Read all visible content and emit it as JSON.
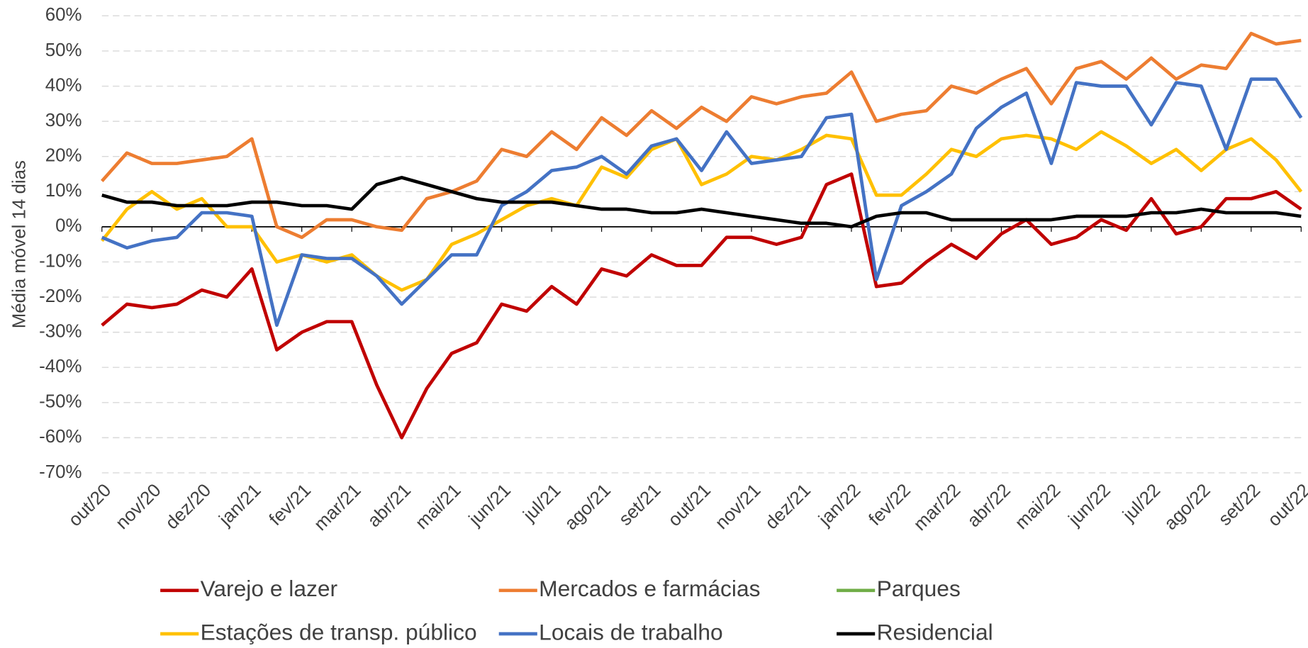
{
  "chart_data": {
    "type": "line",
    "y_label": "Média móvel 14 dias",
    "categories": [
      "out/20",
      null,
      "nov/20",
      null,
      "dez/20",
      null,
      "jan/21",
      null,
      "fev/21",
      null,
      "mar/21",
      null,
      "abr/21",
      null,
      "mai/21",
      null,
      "jun/21",
      null,
      "jul/21",
      null,
      "ago/21",
      null,
      "set/21",
      null,
      "out/21",
      null,
      "nov/21",
      null,
      "dez/21",
      null,
      "jan/22",
      null,
      "fev/22",
      null,
      "mar/22",
      null,
      "abr/22",
      null,
      "mai/22",
      null,
      "jun/22",
      null,
      "jul/22",
      null,
      "ago/22",
      null,
      "set/22",
      null,
      "out/22"
    ],
    "ylim": [
      -70,
      60
    ],
    "yticks": [
      {
        "value": -70,
        "label": "-70%"
      },
      {
        "value": -60,
        "label": "-60%"
      },
      {
        "value": -50,
        "label": "-50%"
      },
      {
        "value": -40,
        "label": "-40%"
      },
      {
        "value": -30,
        "label": "-30%"
      },
      {
        "value": -20,
        "label": "-20%"
      },
      {
        "value": -10,
        "label": "-10%"
      },
      {
        "value": 0,
        "label": "0%"
      },
      {
        "value": 10,
        "label": "10%"
      },
      {
        "value": 20,
        "label": "20%"
      },
      {
        "value": 30,
        "label": "30%"
      },
      {
        "value": 40,
        "label": "40%"
      },
      {
        "value": 50,
        "label": "50%"
      },
      {
        "value": 60,
        "label": "60%"
      }
    ],
    "grid": true,
    "legend": "bottom",
    "series": [
      {
        "name": "Varejo e lazer",
        "color": "#c00000",
        "values": [
          -28,
          -22,
          -23,
          -22,
          -18,
          -20,
          -12,
          -35,
          -30,
          -27,
          -27,
          -45,
          -60,
          -46,
          -36,
          -33,
          -22,
          -24,
          -17,
          -22,
          -12,
          -14,
          -8,
          -11,
          -11,
          -3,
          -3,
          -5,
          -3,
          12,
          15,
          -17,
          -16,
          -10,
          -5,
          -9,
          -2,
          2,
          -5,
          -3,
          2,
          -1,
          8,
          -2,
          0,
          8,
          8,
          10,
          5
        ]
      },
      {
        "name": "Mercados e farmácias",
        "color": "#ed7d31",
        "values": [
          13,
          21,
          18,
          18,
          19,
          20,
          25,
          0,
          -3,
          2,
          2,
          0,
          -1,
          8,
          10,
          13,
          22,
          20,
          27,
          22,
          31,
          26,
          33,
          28,
          34,
          30,
          37,
          35,
          37,
          38,
          44,
          30,
          32,
          33,
          40,
          38,
          42,
          45,
          35,
          45,
          47,
          42,
          48,
          42,
          46,
          45,
          55,
          52,
          53
        ]
      },
      {
        "name": "Parques",
        "color": "#70ad47",
        "values": [
          null,
          null,
          null,
          null,
          null,
          null,
          null,
          null,
          null,
          null,
          null,
          null,
          null,
          null,
          null,
          null,
          null,
          null,
          null,
          null,
          null,
          null,
          null,
          null,
          null,
          null,
          null,
          null,
          null,
          null,
          null,
          null,
          null,
          null,
          null,
          null,
          null,
          null,
          null,
          null,
          null,
          null,
          null,
          null,
          null,
          null,
          null,
          null,
          null
        ]
      },
      {
        "name": "Estações de transp. público",
        "color": "#ffc000",
        "values": [
          -4,
          5,
          10,
          5,
          8,
          0,
          0,
          -10,
          -8,
          -10,
          -8,
          -14,
          -18,
          -15,
          -5,
          -2,
          2,
          6,
          8,
          6,
          17,
          14,
          22,
          25,
          12,
          15,
          20,
          19,
          22,
          26,
          25,
          9,
          9,
          15,
          22,
          20,
          25,
          26,
          25,
          22,
          27,
          23,
          18,
          22,
          16,
          22,
          25,
          19,
          10
        ]
      },
      {
        "name": "Locais de trabalho",
        "color": "#4472c4",
        "values": [
          -3,
          -6,
          -4,
          -3,
          4,
          4,
          3,
          -28,
          -8,
          -9,
          -9,
          -14,
          -22,
          -15,
          -8,
          -8,
          6,
          10,
          16,
          17,
          20,
          15,
          23,
          25,
          16,
          27,
          18,
          19,
          20,
          31,
          32,
          -15,
          6,
          10,
          15,
          28,
          34,
          38,
          18,
          41,
          40,
          40,
          29,
          41,
          40,
          22,
          42,
          42,
          31
        ]
      },
      {
        "name": "Residencial",
        "color": "#000000",
        "values": [
          9,
          7,
          7,
          6,
          6,
          6,
          7,
          7,
          6,
          6,
          5,
          12,
          14,
          12,
          10,
          8,
          7,
          7,
          7,
          6,
          5,
          5,
          4,
          4,
          5,
          4,
          3,
          2,
          1,
          1,
          0,
          3,
          4,
          4,
          2,
          2,
          2,
          2,
          2,
          3,
          3,
          3,
          4,
          4,
          5,
          4,
          4,
          4,
          3
        ]
      }
    ]
  }
}
